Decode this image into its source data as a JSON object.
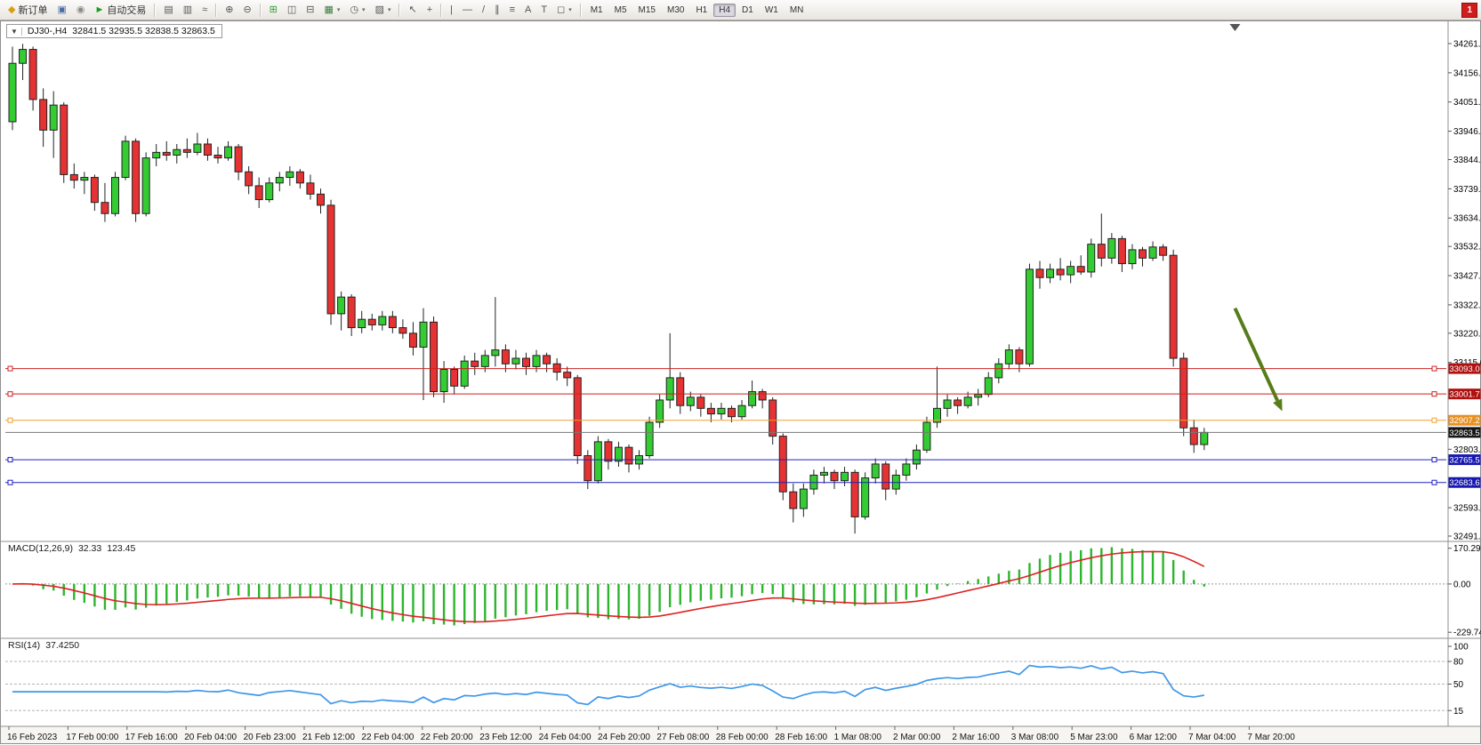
{
  "toolbar": {
    "new_order": {
      "label": "新订单",
      "icon_glyph": "◆",
      "icon_color": "#d8a010"
    },
    "autotrade": {
      "label": "自动交易",
      "icon_glyph": "►",
      "icon_color": "#18a018"
    },
    "left_icons": [
      {
        "name": "charts-profile-icon",
        "glyph": "▣",
        "color": "#4a6da7"
      },
      {
        "name": "market-watch-icon",
        "glyph": "◉",
        "color": "#8a8a8a"
      }
    ],
    "tool_icons": [
      {
        "sep": true
      },
      {
        "name": "bar-chart-icon",
        "glyph": "▤"
      },
      {
        "name": "candlestick-chart-icon",
        "glyph": "▥"
      },
      {
        "name": "line-chart-icon",
        "glyph": "≈"
      },
      {
        "sep": true
      },
      {
        "name": "zoom-in-icon",
        "glyph": "⊕"
      },
      {
        "name": "zoom-out-icon",
        "glyph": "⊖"
      },
      {
        "sep": true
      },
      {
        "name": "tile-windows-icon",
        "glyph": "⊞",
        "color": "#2f9e2f"
      },
      {
        "name": "cascade-windows-icon",
        "glyph": "◫"
      },
      {
        "name": "arrange-windows-icon",
        "glyph": "⊟"
      },
      {
        "name": "new-chart-icon",
        "glyph": "▦",
        "color": "#3a7a3a",
        "dropdown": true
      },
      {
        "name": "periods-clock-icon",
        "glyph": "◷",
        "dropdown": true
      },
      {
        "name": "templates-icon",
        "glyph": "▨",
        "dropdown": true
      },
      {
        "sep": true
      },
      {
        "name": "cursor-icon",
        "glyph": "↖"
      },
      {
        "name": "crosshair-icon",
        "glyph": "+"
      },
      {
        "sep": true
      },
      {
        "name": "vertical-line-icon",
        "glyph": "|"
      },
      {
        "name": "horizontal-line-icon",
        "glyph": "—"
      },
      {
        "name": "trendline-icon",
        "glyph": "/"
      },
      {
        "name": "equidistant-channel-icon",
        "glyph": "∥"
      },
      {
        "name": "fibonacci-icon",
        "glyph": "≡"
      },
      {
        "name": "text-icon",
        "glyph": "A"
      },
      {
        "name": "label-icon",
        "glyph": "T"
      },
      {
        "name": "shapes-icon",
        "glyph": "◻",
        "dropdown": true
      },
      {
        "sep": true
      }
    ],
    "timeframes": [
      "M1",
      "M5",
      "M15",
      "M30",
      "H1",
      "H4",
      "D1",
      "W1",
      "MN"
    ],
    "active_timeframe": "H4",
    "notification_count": "1"
  },
  "chart": {
    "collapse_glyph": "▼",
    "symbol_period": "DJ30-,H4",
    "ohlc_text": "32841.5 32935.5 32838.5 32863.5",
    "colors": {
      "up": "#33cc33",
      "down": "#e63232",
      "outline": "#222222"
    },
    "price_axis": {
      "min": 32491,
      "max": 34261,
      "ticks": [
        "34261.0",
        "34156.0",
        "34051.0",
        "33946.0",
        "33844.0",
        "33739.0",
        "33634.0",
        "33532.0",
        "33427.0",
        "33322.0",
        "33220.0",
        "33115.0",
        "32803.0",
        "32593.0",
        "32491.0"
      ]
    },
    "hlines": [
      {
        "label": "33093.0",
        "price": 33093.0,
        "line_color": "#cc2222",
        "badge_bg": "#b01010"
      },
      {
        "label": "33001.7",
        "price": 33001.7,
        "line_color": "#cc2222",
        "badge_bg": "#b01010"
      },
      {
        "label": "32907.2",
        "price": 32907.2,
        "line_color": "#f0a030",
        "badge_bg": "#e89020"
      },
      {
        "label": "32863.5",
        "price": 32863.5,
        "line_color": "#777777",
        "badge_bg": "#151515",
        "current": true
      },
      {
        "label": "32765.5",
        "price": 32765.5,
        "line_color": "#2020c0",
        "badge_bg": "#1818b0"
      },
      {
        "label": "32683.6",
        "price": 32683.6,
        "line_color": "#2020c0",
        "badge_bg": "#1818b0"
      }
    ],
    "arrow": {
      "color": "#567d1a",
      "from_bar": 119,
      "from_price": 33310,
      "to_bar": 123.6,
      "to_price": 32940
    },
    "shift_marker_bar": 119,
    "candles": [
      [
        33980,
        34250,
        33950,
        34190
      ],
      [
        34190,
        34260,
        34130,
        34240
      ],
      [
        34240,
        34250,
        34020,
        34060
      ],
      [
        34060,
        34100,
        33890,
        33950
      ],
      [
        33950,
        34090,
        33850,
        34040
      ],
      [
        34040,
        34050,
        33760,
        33790
      ],
      [
        33790,
        33830,
        33740,
        33770
      ],
      [
        33770,
        33800,
        33720,
        33780
      ],
      [
        33780,
        33790,
        33660,
        33690
      ],
      [
        33690,
        33760,
        33620,
        33650
      ],
      [
        33650,
        33800,
        33640,
        33780
      ],
      [
        33780,
        33930,
        33770,
        33910
      ],
      [
        33910,
        33920,
        33620,
        33650
      ],
      [
        33650,
        33870,
        33640,
        33850
      ],
      [
        33850,
        33900,
        33820,
        33870
      ],
      [
        33870,
        33910,
        33840,
        33860
      ],
      [
        33860,
        33900,
        33830,
        33880
      ],
      [
        33880,
        33920,
        33850,
        33870
      ],
      [
        33870,
        33940,
        33860,
        33900
      ],
      [
        33900,
        33920,
        33840,
        33860
      ],
      [
        33860,
        33890,
        33830,
        33850
      ],
      [
        33850,
        33910,
        33840,
        33890
      ],
      [
        33890,
        33900,
        33770,
        33800
      ],
      [
        33800,
        33820,
        33720,
        33750
      ],
      [
        33750,
        33780,
        33670,
        33700
      ],
      [
        33700,
        33780,
        33690,
        33760
      ],
      [
        33760,
        33800,
        33730,
        33780
      ],
      [
        33780,
        33820,
        33750,
        33800
      ],
      [
        33800,
        33810,
        33740,
        33760
      ],
      [
        33760,
        33790,
        33700,
        33720
      ],
      [
        33720,
        33740,
        33650,
        33680
      ],
      [
        33680,
        33700,
        33250,
        33290
      ],
      [
        33290,
        33370,
        33230,
        33350
      ],
      [
        33350,
        33360,
        33210,
        33240
      ],
      [
        33240,
        33300,
        33220,
        33270
      ],
      [
        33270,
        33290,
        33230,
        33250
      ],
      [
        33250,
        33300,
        33230,
        33280
      ],
      [
        33280,
        33300,
        33220,
        33240
      ],
      [
        33240,
        33270,
        33200,
        33220
      ],
      [
        33220,
        33260,
        33140,
        33170
      ],
      [
        33170,
        33310,
        32980,
        33260
      ],
      [
        33260,
        33280,
        32990,
        33010
      ],
      [
        33010,
        33120,
        32970,
        33090
      ],
      [
        33090,
        33100,
        33000,
        33030
      ],
      [
        33030,
        33140,
        33020,
        33120
      ],
      [
        33120,
        33150,
        33070,
        33100
      ],
      [
        33100,
        33160,
        33080,
        33140
      ],
      [
        33140,
        33350,
        33100,
        33160
      ],
      [
        33160,
        33180,
        33080,
        33110
      ],
      [
        33110,
        33160,
        33090,
        33130
      ],
      [
        33130,
        33150,
        33070,
        33100
      ],
      [
        33100,
        33160,
        33080,
        33140
      ],
      [
        33140,
        33150,
        33080,
        33110
      ],
      [
        33110,
        33130,
        33050,
        33080
      ],
      [
        33080,
        33100,
        33030,
        33060
      ],
      [
        33060,
        33070,
        32750,
        32780
      ],
      [
        32780,
        32800,
        32660,
        32690
      ],
      [
        32690,
        32850,
        32680,
        32830
      ],
      [
        32830,
        32840,
        32730,
        32760
      ],
      [
        32760,
        32830,
        32740,
        32810
      ],
      [
        32810,
        32820,
        32720,
        32750
      ],
      [
        32750,
        32800,
        32730,
        32780
      ],
      [
        32780,
        32920,
        32770,
        32900
      ],
      [
        32900,
        33000,
        32880,
        32980
      ],
      [
        32980,
        33220,
        32950,
        33060
      ],
      [
        33060,
        33080,
        32930,
        32960
      ],
      [
        32960,
        33010,
        32940,
        32990
      ],
      [
        32990,
        33000,
        32920,
        32950
      ],
      [
        32950,
        32970,
        32900,
        32930
      ],
      [
        32930,
        32970,
        32910,
        32950
      ],
      [
        32950,
        32960,
        32900,
        32920
      ],
      [
        32920,
        32980,
        32910,
        32960
      ],
      [
        32960,
        33050,
        32950,
        33010
      ],
      [
        33010,
        33020,
        32950,
        32980
      ],
      [
        32980,
        32990,
        32820,
        32850
      ],
      [
        32850,
        32860,
        32620,
        32650
      ],
      [
        32650,
        32680,
        32540,
        32590
      ],
      [
        32590,
        32680,
        32560,
        32660
      ],
      [
        32660,
        32730,
        32640,
        32710
      ],
      [
        32710,
        32740,
        32680,
        32720
      ],
      [
        32720,
        32730,
        32660,
        32690
      ],
      [
        32690,
        32740,
        32670,
        32720
      ],
      [
        32720,
        32730,
        32500,
        32560
      ],
      [
        32560,
        32720,
        32550,
        32700
      ],
      [
        32700,
        32770,
        32680,
        32750
      ],
      [
        32750,
        32760,
        32620,
        32660
      ],
      [
        32660,
        32730,
        32640,
        32710
      ],
      [
        32710,
        32770,
        32690,
        32750
      ],
      [
        32750,
        32820,
        32730,
        32800
      ],
      [
        32800,
        32920,
        32790,
        32900
      ],
      [
        32900,
        33100,
        32880,
        32950
      ],
      [
        32950,
        33000,
        32920,
        32980
      ],
      [
        32980,
        32990,
        32930,
        32960
      ],
      [
        32960,
        33010,
        32950,
        32990
      ],
      [
        32990,
        33020,
        32960,
        33000
      ],
      [
        33000,
        33080,
        32990,
        33060
      ],
      [
        33060,
        33130,
        33040,
        33110
      ],
      [
        33110,
        33180,
        33090,
        33160
      ],
      [
        33160,
        33170,
        33080,
        33110
      ],
      [
        33110,
        33470,
        33100,
        33450
      ],
      [
        33450,
        33480,
        33380,
        33420
      ],
      [
        33420,
        33470,
        33400,
        33450
      ],
      [
        33450,
        33490,
        33410,
        33430
      ],
      [
        33430,
        33480,
        33400,
        33460
      ],
      [
        33460,
        33500,
        33430,
        33440
      ],
      [
        33440,
        33560,
        33420,
        33540
      ],
      [
        33540,
        33650,
        33460,
        33490
      ],
      [
        33490,
        33580,
        33470,
        33560
      ],
      [
        33560,
        33570,
        33440,
        33470
      ],
      [
        33470,
        33540,
        33450,
        33520
      ],
      [
        33520,
        33530,
        33460,
        33490
      ],
      [
        33490,
        33550,
        33480,
        33530
      ],
      [
        33530,
        33540,
        33480,
        33500
      ],
      [
        33500,
        33520,
        33100,
        33130
      ],
      [
        33130,
        33150,
        32850,
        32880
      ],
      [
        32880,
        32910,
        32790,
        32820
      ],
      [
        32820,
        32880,
        32800,
        32863.5
      ]
    ]
  },
  "macd": {
    "title": "MACD(12,26,9)",
    "value_main": "32.33",
    "value_signal": "123.45",
    "params": [
      12,
      26,
      9
    ],
    "scale": [
      {
        "label": "170.29",
        "value": 170.29
      },
      {
        "label": "0.00",
        "value": 0
      },
      {
        "label": "-229.74",
        "value": -229.74
      }
    ],
    "colors": {
      "histogram": "#2db52d",
      "signal": "#dd2222"
    }
  },
  "rsi": {
    "title": "RSI(14)",
    "value": "37.4250",
    "period": 14,
    "scale": [
      {
        "label": "100",
        "value": 100
      },
      {
        "label": "80",
        "value": 80
      },
      {
        "label": "50",
        "value": 50
      },
      {
        "label": "15",
        "value": 15
      }
    ],
    "levels": [
      80,
      50,
      15
    ],
    "color": "#3f97e8"
  },
  "time_axis": [
    "16 Feb 2023",
    "17 Feb 00:00",
    "17 Feb 16:00",
    "20 Feb 04:00",
    "20 Feb 23:00",
    "21 Feb 12:00",
    "22 Feb 04:00",
    "22 Feb 20:00",
    "23 Feb 12:00",
    "24 Feb 04:00",
    "24 Feb 20:00",
    "27 Feb 08:00",
    "28 Feb 00:00",
    "28 Feb 16:00",
    "1 Mar 08:00",
    "2 Mar 00:00",
    "2 Mar 16:00",
    "3 Mar 08:00",
    "5 Mar 23:00",
    "6 Mar 12:00",
    "7 Mar 04:00",
    "7 Mar 20:00"
  ]
}
